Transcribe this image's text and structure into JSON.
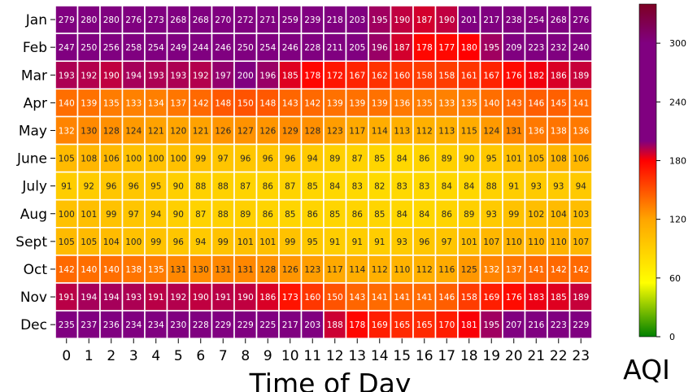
{
  "chart_data": {
    "type": "heatmap",
    "xlabel": "Time of Day",
    "colorbar_label": "AQI",
    "x": [
      "0",
      "1",
      "2",
      "3",
      "4",
      "5",
      "6",
      "7",
      "8",
      "9",
      "10",
      "11",
      "12",
      "13",
      "14",
      "15",
      "16",
      "17",
      "18",
      "19",
      "20",
      "21",
      "22",
      "23"
    ],
    "y": [
      "Jan",
      "Feb",
      "Mar",
      "Apr",
      "May",
      "June",
      "July",
      "Aug",
      "Sept",
      "Oct",
      "Nov",
      "Dec"
    ],
    "values": [
      [
        279,
        280,
        280,
        276,
        273,
        268,
        268,
        270,
        272,
        271,
        259,
        239,
        218,
        203,
        195,
        190,
        187,
        190,
        201,
        217,
        238,
        254,
        268,
        276
      ],
      [
        247,
        250,
        256,
        258,
        254,
        249,
        244,
        246,
        250,
        254,
        246,
        228,
        211,
        205,
        196,
        187,
        178,
        177,
        180,
        195,
        209,
        223,
        232,
        240
      ],
      [
        193,
        192,
        190,
        194,
        193,
        193,
        192,
        197,
        200,
        196,
        185,
        178,
        172,
        167,
        162,
        160,
        158,
        158,
        161,
        167,
        176,
        182,
        186,
        189
      ],
      [
        140,
        139,
        135,
        133,
        134,
        137,
        142,
        148,
        150,
        148,
        143,
        142,
        139,
        139,
        139,
        136,
        135,
        133,
        135,
        140,
        143,
        146,
        145,
        141
      ],
      [
        132,
        130,
        128,
        124,
        121,
        120,
        121,
        126,
        127,
        126,
        129,
        128,
        123,
        117,
        114,
        113,
        112,
        113,
        115,
        124,
        131,
        136,
        138,
        136
      ],
      [
        105,
        108,
        106,
        100,
        100,
        100,
        99,
        97,
        96,
        96,
        96,
        94,
        89,
        87,
        85,
        84,
        86,
        89,
        90,
        95,
        101,
        105,
        108,
        106
      ],
      [
        91,
        92,
        96,
        96,
        95,
        90,
        88,
        88,
        87,
        86,
        87,
        85,
        84,
        83,
        82,
        83,
        83,
        84,
        84,
        88,
        91,
        93,
        93,
        94
      ],
      [
        100,
        101,
        99,
        97,
        94,
        90,
        87,
        88,
        89,
        86,
        85,
        86,
        85,
        86,
        85,
        84,
        84,
        86,
        89,
        93,
        99,
        102,
        104,
        103
      ],
      [
        105,
        105,
        104,
        100,
        99,
        96,
        94,
        99,
        101,
        101,
        99,
        95,
        91,
        91,
        91,
        93,
        96,
        97,
        101,
        107,
        110,
        110,
        110,
        107
      ],
      [
        142,
        140,
        140,
        138,
        135,
        131,
        130,
        131,
        131,
        128,
        126,
        123,
        117,
        114,
        112,
        110,
        112,
        116,
        125,
        132,
        137,
        141,
        142,
        142
      ],
      [
        191,
        194,
        194,
        193,
        191,
        192,
        190,
        191,
        190,
        186,
        173,
        160,
        150,
        143,
        141,
        141,
        141,
        146,
        158,
        169,
        176,
        183,
        185,
        189
      ],
      [
        235,
        237,
        236,
        234,
        234,
        230,
        228,
        229,
        229,
        225,
        217,
        203,
        188,
        178,
        169,
        165,
        165,
        170,
        181,
        195,
        207,
        216,
        223,
        229
      ]
    ],
    "colorbar": {
      "vmin": 0,
      "vmax": 340,
      "ticks": [
        0,
        60,
        120,
        180,
        240,
        300
      ],
      "stops": [
        {
          "v": 0,
          "color": "#008000"
        },
        {
          "v": 55,
          "color": "#ffff00"
        },
        {
          "v": 120,
          "color": "#ffa500"
        },
        {
          "v": 180,
          "color": "#ff0000"
        },
        {
          "v": 200,
          "color": "#800080"
        },
        {
          "v": 300,
          "color": "#800080"
        },
        {
          "v": 340,
          "color": "#7e0023"
        }
      ]
    },
    "cell_border_color": "#ffffff"
  }
}
